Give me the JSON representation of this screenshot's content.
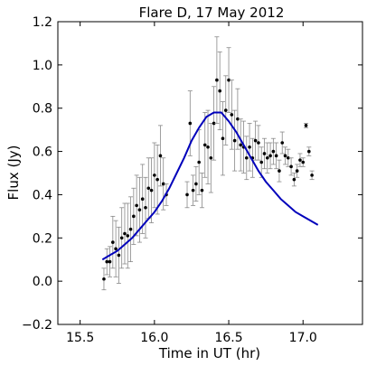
{
  "chart_data": {
    "type": "scatter",
    "title": "Flare D, 17 May 2012",
    "xlabel": "Time in UT (hr)",
    "ylabel": "Flux (Jy)",
    "xlim": [
      15.35,
      17.4
    ],
    "ylim": [
      -0.2,
      1.2
    ],
    "xticks": [
      15.5,
      16.0,
      16.5,
      17.0
    ],
    "xtick_labels": [
      "15.5",
      "16.0",
      "16.5",
      "17.0"
    ],
    "yticks": [
      -0.2,
      0.0,
      0.2,
      0.4,
      0.6,
      0.8,
      1.0,
      1.2
    ],
    "ytick_labels": [
      "−0.2",
      "0.0",
      "0.2",
      "0.4",
      "0.6",
      "0.8",
      "1.0",
      "1.2"
    ],
    "grid": false,
    "colors": {
      "points": "#000000",
      "errorbars": "#888888",
      "model": "#0000bb"
    },
    "series": [
      {
        "kind": "errorbar",
        "x": [
          15.66,
          15.68,
          15.7,
          15.72,
          15.74,
          15.76,
          15.78,
          15.8,
          15.82,
          15.84,
          15.86,
          15.88,
          15.9,
          15.92,
          15.94,
          15.96,
          15.98,
          16.0,
          16.02,
          16.04,
          16.06,
          16.08,
          16.22,
          16.24,
          16.26,
          16.28,
          16.3,
          16.32,
          16.34,
          16.36,
          16.38,
          16.4,
          16.42,
          16.44,
          16.46,
          16.48,
          16.5,
          16.52,
          16.54,
          16.56,
          16.58,
          16.6,
          16.62,
          16.64,
          16.66,
          16.68,
          16.7,
          16.72,
          16.74,
          16.76,
          16.78,
          16.8,
          16.82,
          16.84,
          16.86,
          16.88,
          16.9,
          16.92,
          16.94,
          16.96,
          16.98,
          17.0,
          17.02,
          17.04,
          17.06
        ],
        "y": [
          0.01,
          0.09,
          0.09,
          0.18,
          0.15,
          0.12,
          0.2,
          0.22,
          0.21,
          0.24,
          0.3,
          0.35,
          0.33,
          0.38,
          0.34,
          0.43,
          0.42,
          0.49,
          0.47,
          0.58,
          0.45,
          0.4,
          0.4,
          0.73,
          0.42,
          0.45,
          0.55,
          0.42,
          0.63,
          0.62,
          0.57,
          0.73,
          0.93,
          0.88,
          0.66,
          0.79,
          0.93,
          0.77,
          0.65,
          0.75,
          0.63,
          0.62,
          0.57,
          0.62,
          0.57,
          0.65,
          0.64,
          0.55,
          0.59,
          0.57,
          0.58,
          0.6,
          0.58,
          0.51,
          0.64,
          0.58,
          0.57,
          0.53,
          0.47,
          0.51,
          0.56,
          0.55,
          0.72,
          0.6,
          0.49
        ],
        "yerr": [
          0.05,
          0.06,
          0.07,
          0.12,
          0.13,
          0.13,
          0.14,
          0.14,
          0.15,
          0.15,
          0.13,
          0.14,
          0.15,
          0.16,
          0.14,
          0.14,
          0.15,
          0.15,
          0.16,
          0.14,
          0.12,
          0.05,
          0.06,
          0.15,
          0.07,
          0.08,
          0.15,
          0.08,
          0.15,
          0.17,
          0.16,
          0.17,
          0.2,
          0.18,
          0.17,
          0.16,
          0.15,
          0.16,
          0.14,
          0.14,
          0.12,
          0.12,
          0.1,
          0.11,
          0.09,
          0.09,
          0.08,
          0.07,
          0.07,
          0.07,
          0.06,
          0.06,
          0.06,
          0.05,
          0.05,
          0.04,
          0.04,
          0.04,
          0.03,
          0.03,
          0.03,
          0.02,
          0.01,
          0.02,
          0.02
        ]
      },
      {
        "kind": "model",
        "x": [
          15.65,
          15.7,
          15.75,
          15.8,
          15.85,
          15.9,
          15.95,
          16.0,
          16.05,
          16.1,
          16.15,
          16.2,
          16.25,
          16.3,
          16.35,
          16.4,
          16.45,
          16.5,
          16.55,
          16.6,
          16.65,
          16.7,
          16.75,
          16.8,
          16.85,
          16.9,
          16.95,
          17.0,
          17.05,
          17.1
        ],
        "y": [
          0.1,
          0.12,
          0.14,
          0.17,
          0.2,
          0.24,
          0.28,
          0.32,
          0.37,
          0.43,
          0.5,
          0.57,
          0.65,
          0.71,
          0.76,
          0.78,
          0.78,
          0.74,
          0.69,
          0.63,
          0.57,
          0.51,
          0.46,
          0.42,
          0.38,
          0.35,
          0.32,
          0.3,
          0.28,
          0.26
        ]
      }
    ]
  }
}
